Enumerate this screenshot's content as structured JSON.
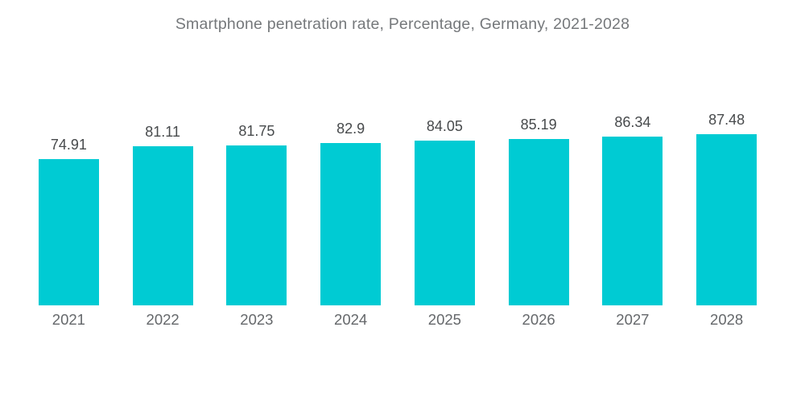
{
  "chart_data": {
    "type": "bar",
    "title": "Smartphone penetration rate, Percentage, Germany, 2021-2028",
    "categories": [
      "2021",
      "2022",
      "2023",
      "2024",
      "2025",
      "2026",
      "2027",
      "2028"
    ],
    "values": [
      74.91,
      81.11,
      81.75,
      82.9,
      84.05,
      85.19,
      86.34,
      87.48
    ],
    "value_labels": [
      "74.91",
      "81.11",
      "81.75",
      "82.9",
      "84.05",
      "85.19",
      "86.34",
      "87.48"
    ],
    "xlabel": "",
    "ylabel": "",
    "ylim": [
      0,
      100
    ],
    "grid": false,
    "legend": false,
    "bar_color": "#00cbd3",
    "title_color": "#75787b",
    "value_label_color": "#474a4c",
    "axis_label_color": "#64676a",
    "background_color": "#ffffff",
    "pixels_per_unit": 2.435
  }
}
